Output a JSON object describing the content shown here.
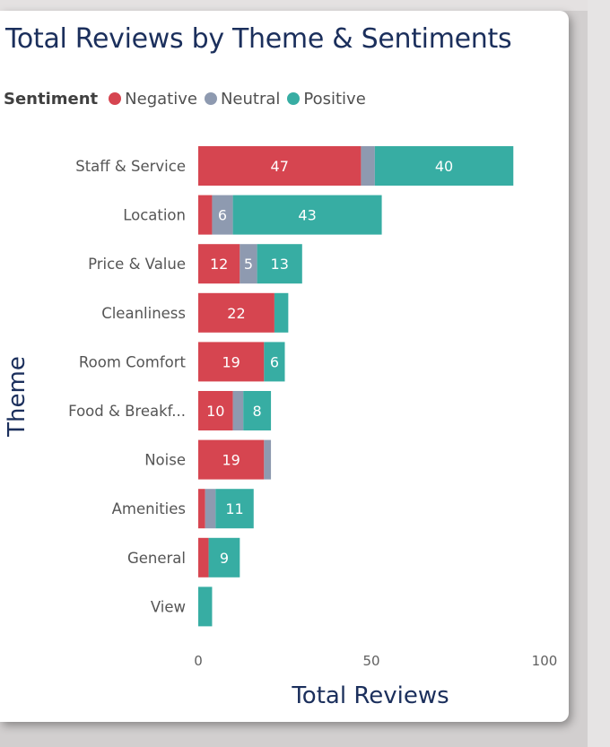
{
  "colors": {
    "negative": "#d64550",
    "neutral": "#8e9ab0",
    "positive": "#37ada3"
  },
  "chart_data": {
    "type": "bar",
    "orientation": "horizontal",
    "stacked": true,
    "title": "Total Reviews by Theme & Sentiments",
    "xlabel": "Total Reviews",
    "ylabel": "Theme",
    "xlim": [
      0,
      100
    ],
    "xticks": [
      0,
      50,
      100
    ],
    "legend": {
      "title": "Sentiment",
      "position": "top-left"
    },
    "categories": [
      "Staff & Service",
      "Location",
      "Price & Value",
      "Cleanliness",
      "Room Comfort",
      "Food & Breakf...",
      "Noise",
      "Amenities",
      "General",
      "View"
    ],
    "series": [
      {
        "name": "Negative",
        "color": "#d64550",
        "values": [
          47,
          4,
          12,
          22,
          19,
          10,
          19,
          2,
          3,
          0
        ]
      },
      {
        "name": "Neutral",
        "color": "#8e9ab0",
        "values": [
          4,
          6,
          5,
          0,
          0,
          3,
          2,
          3,
          0,
          0
        ]
      },
      {
        "name": "Positive",
        "color": "#37ada3",
        "values": [
          40,
          43,
          13,
          4,
          6,
          8,
          0,
          11,
          9,
          4
        ]
      }
    ],
    "data_labels": [
      [
        "47",
        "",
        "40"
      ],
      [
        "",
        "6",
        "43"
      ],
      [
        "12",
        "5",
        "13"
      ],
      [
        "22",
        "",
        ""
      ],
      [
        "19",
        "",
        "6"
      ],
      [
        "10",
        "",
        "8"
      ],
      [
        "19",
        "",
        ""
      ],
      [
        "",
        "",
        "11"
      ],
      [
        "",
        "",
        "9"
      ],
      [
        "",
        "",
        ""
      ]
    ],
    "grid": false
  }
}
